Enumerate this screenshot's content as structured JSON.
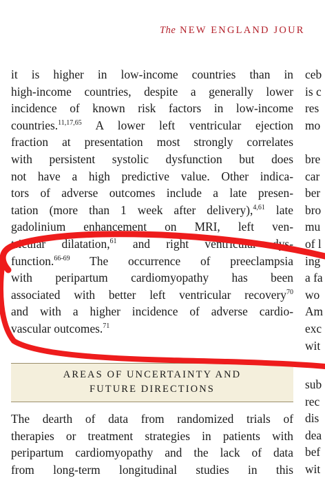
{
  "header": {
    "the": "The",
    "journal": " NEW ENGLAND JOUR"
  },
  "main_column": {
    "lines": [
      {
        "t": "it is higher in low-income countries than in"
      },
      {
        "t": "high-income countries, despite a generally lower"
      },
      {
        "t": "incidence of known risk factors in low-income"
      },
      {
        "t": "countries.",
        "sup": "11,17,65",
        "t2": " A lower left ventricular ejection"
      },
      {
        "t": "fraction at presentation most strongly correlates"
      },
      {
        "t": "with persistent systolic dysfunction but does"
      },
      {
        "t": "not have a high predictive value. Other indica-"
      },
      {
        "t": "tors of adverse outcomes include a late presen-"
      },
      {
        "t": "tation (more than 1 week after delivery),",
        "sup": "4,61",
        "t2": " late"
      },
      {
        "t": "gadolinium enhancement on MRI, left ven-"
      },
      {
        "t": "tricular dilatation,",
        "sup": "61",
        "t2": " and right ventricular dys-"
      },
      {
        "t": "function.",
        "sup": "66-69",
        "t2": " The occurrence of preeclampsia"
      },
      {
        "t": "with peripartum cardiomyopathy has been"
      },
      {
        "t": "associated with better left ventricular recovery",
        "sup": "70"
      },
      {
        "t": "and with a higher incidence of adverse cardio-"
      },
      {
        "t": "vascular outcomes.",
        "sup": "71",
        "last": true
      }
    ]
  },
  "section": {
    "line1": "AREAS OF UNCERTAINTY AND",
    "line2": "FUTURE DIRECTIONS"
  },
  "second_column": {
    "lines": [
      {
        "t": "The dearth of data from randomized trials of"
      },
      {
        "t": "therapies or treatment strategies in patients with"
      },
      {
        "t": "peripartum cardiomyopathy and the lack of data"
      },
      {
        "t": "from long-term longitudinal studies in this"
      }
    ]
  },
  "right_column_top": [
    "ceb",
    "is c",
    "res",
    "mo",
    "",
    "bre",
    "car",
    "ber",
    "bro",
    "mu",
    "of l",
    "ing",
    "a fa",
    "wo",
    "Am",
    "exc",
    "wit"
  ],
  "right_column_bottom": [
    "sub",
    "rec",
    "dis",
    "dea",
    "bef",
    "wit"
  ],
  "annotation": {
    "color": "#ee1c1c"
  }
}
